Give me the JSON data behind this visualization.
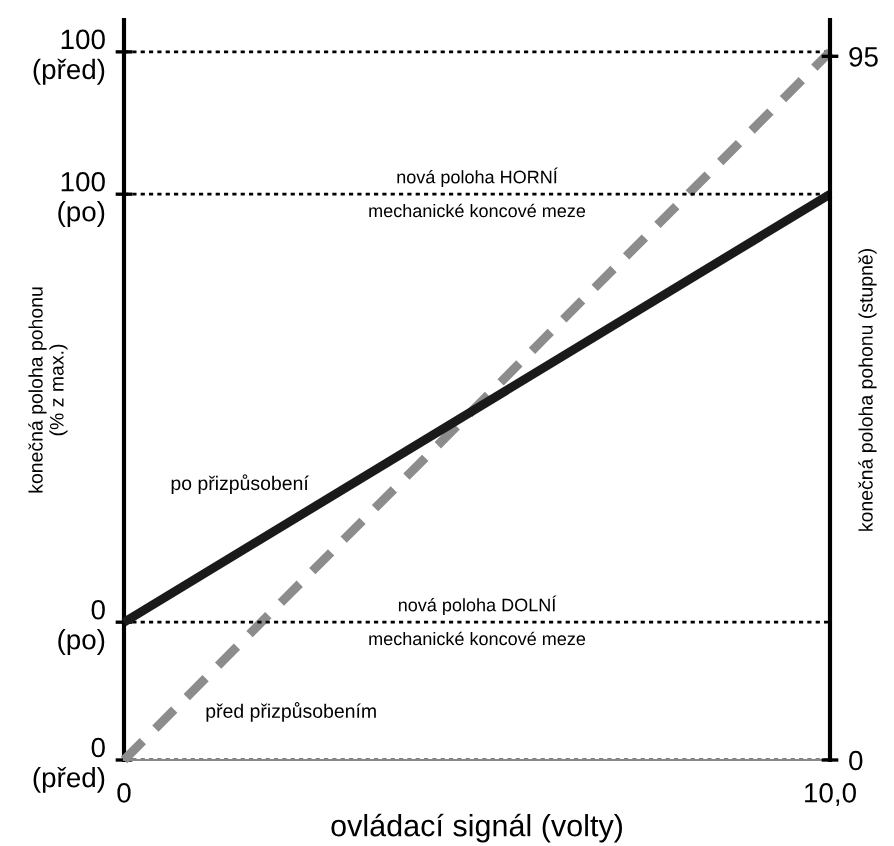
{
  "chart_data": {
    "type": "line",
    "xlabel": "ovládací signál (volty)",
    "ylabel": "konečná poloha pohonu\n(% z max.)",
    "y2label": "konečná poloha pohonu (stupně)",
    "x": [
      0,
      10
    ],
    "xlim": [
      0,
      10
    ],
    "xticks": [
      0,
      {
        "value": 10,
        "label": "10,0"
      }
    ],
    "ylim": [
      0,
      104.5
    ],
    "yticks": [
      {
        "value": 0,
        "label": "0\n(před)"
      },
      {
        "value": 100,
        "label": "100\n(před)"
      }
    ],
    "y3lim": [
      -32.2,
      140.7
    ],
    "y3ticks": [
      {
        "value": 0,
        "label": "0\n(po)"
      },
      {
        "value": 100,
        "label": "100\n(po)"
      }
    ],
    "y2lim": [
      0,
      99.9
    ],
    "y2ticks": [
      0,
      95
    ],
    "series": [
      {
        "name": "před přizpůsobením",
        "color": "#8c8c8c",
        "values": [
          0,
          100
        ],
        "line_style": "dashed"
      },
      {
        "name": "po přizpůsobení",
        "color": "#1a1a1a",
        "values": [
          0,
          100
        ],
        "line_style": "solid",
        "axis": "y3"
      }
    ],
    "annotations": [
      "nová poloha HORNÍ\nmechanické koncové meze",
      "nová poloha DOLNÍ\nmechanické koncové meze"
    ],
    "grid": "y",
    "legend": false
  }
}
